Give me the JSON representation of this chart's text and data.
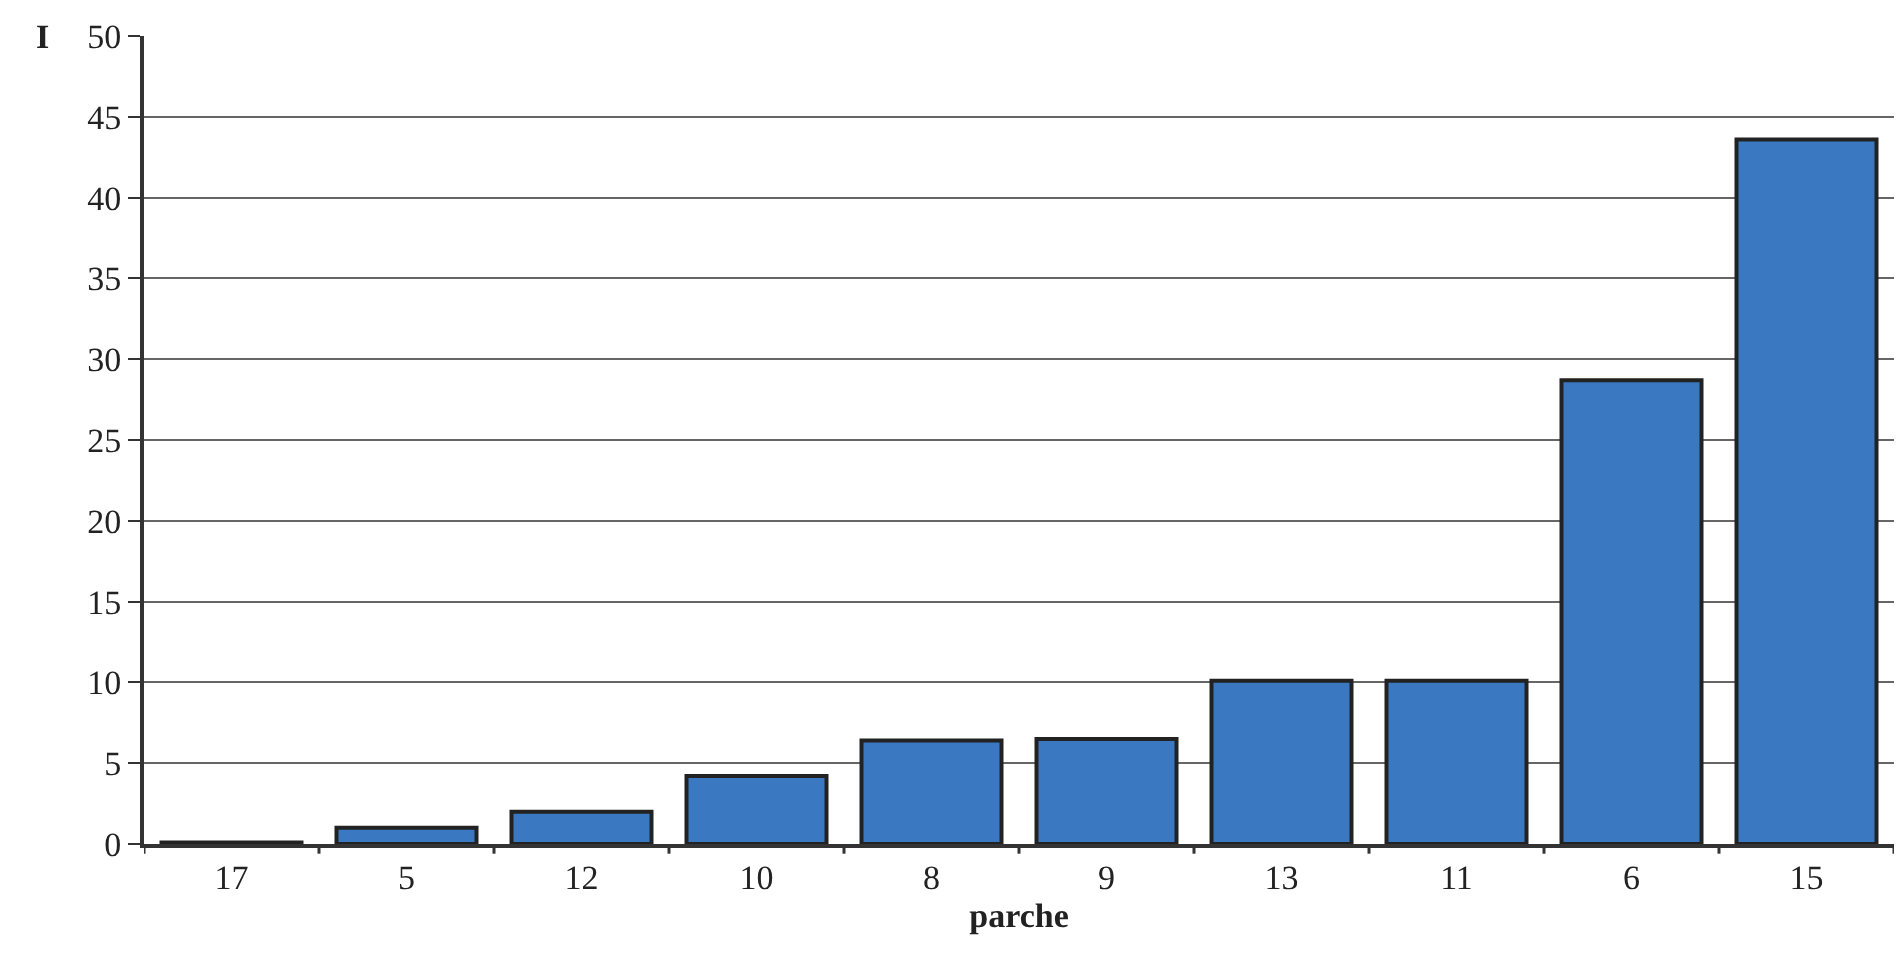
{
  "chart_data": {
    "type": "bar",
    "xlabel": "parche",
    "ylabel": "I",
    "categories": [
      "17",
      "5",
      "12",
      "10",
      "8",
      "9",
      "13",
      "11",
      "6",
      "15"
    ],
    "values": [
      0.1,
      1.0,
      2.0,
      4.2,
      6.4,
      6.5,
      10.1,
      10.1,
      28.7,
      43.6
    ],
    "color": "#3a78c2",
    "ylim": [
      0,
      50
    ],
    "yticks": [
      0,
      5,
      10,
      15,
      20,
      25,
      30,
      35,
      40,
      45,
      50
    ],
    "grid": "y",
    "legend": false
  }
}
